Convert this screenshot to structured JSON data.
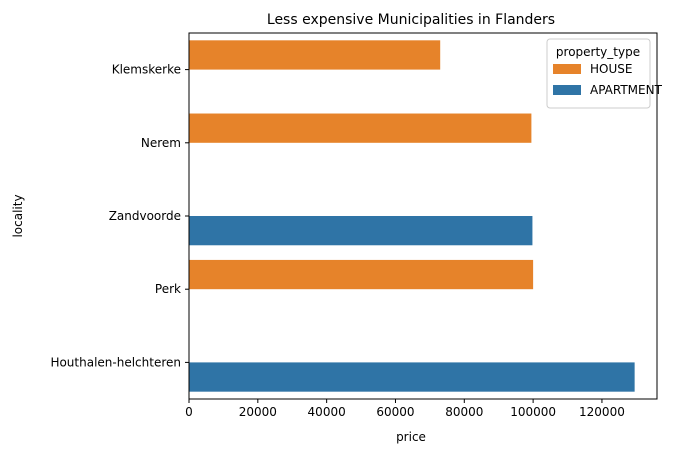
{
  "chart_data": {
    "type": "bar",
    "orientation": "horizontal",
    "title": "Less expensive Municipalities in Flanders",
    "xlabel": "price",
    "ylabel": "locality",
    "xlim": [
      0,
      136000
    ],
    "x_ticks": [
      0,
      20000,
      40000,
      60000,
      80000,
      100000,
      120000
    ],
    "categories": [
      "Klemskerke",
      "Nerem",
      "Zandvoorde",
      "Perk",
      "Houthalen-helchteren"
    ],
    "hue_order": [
      "HOUSE",
      "APARTMENT"
    ],
    "bars": [
      {
        "category": "Klemskerke",
        "series": "HOUSE",
        "value": 73000
      },
      {
        "category": "Nerem",
        "series": "HOUSE",
        "value": 99500
      },
      {
        "category": "Zandvoorde",
        "series": "APARTMENT",
        "value": 99800
      },
      {
        "category": "Perk",
        "series": "HOUSE",
        "value": 100000
      },
      {
        "category": "Houthalen-helchteren",
        "series": "APARTMENT",
        "value": 129500
      }
    ],
    "legend": {
      "title": "property_type",
      "placement": "top-right",
      "entries": [
        {
          "name": "HOUSE",
          "color": "#e6832a"
        },
        {
          "name": "APARTMENT",
          "color": "#2f74a6"
        }
      ]
    },
    "grid": false
  }
}
